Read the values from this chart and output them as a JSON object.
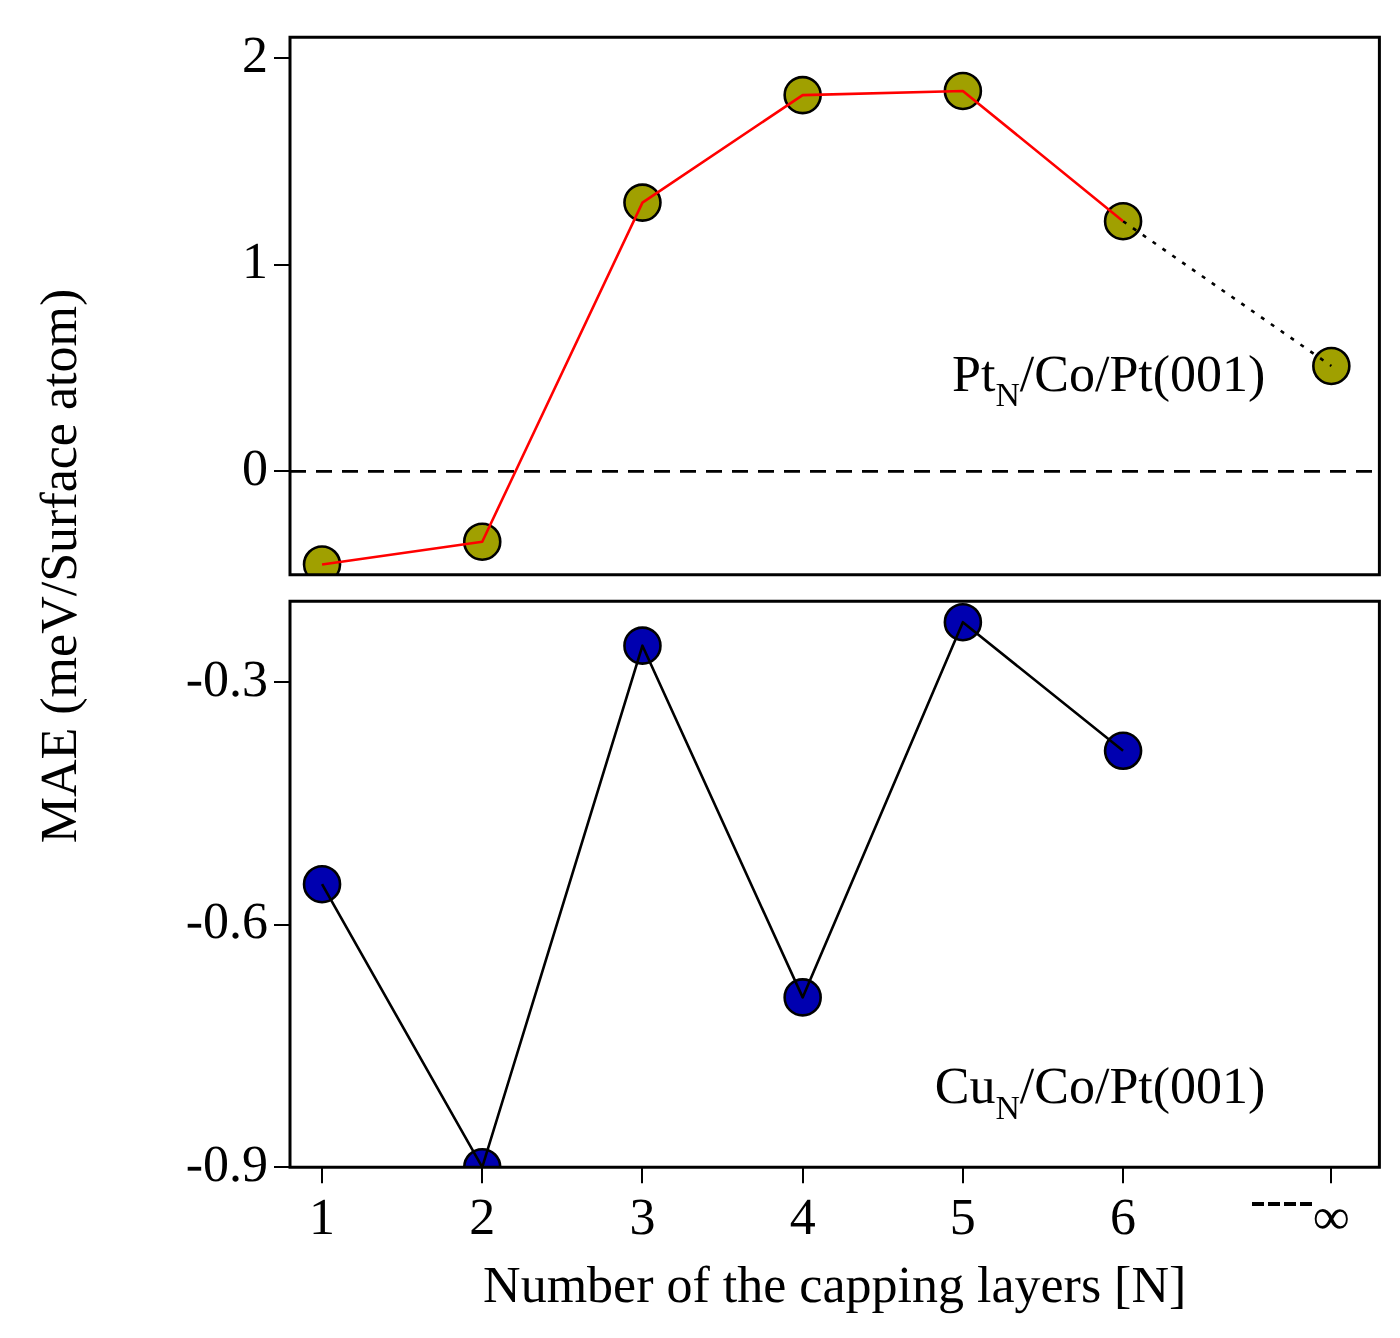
{
  "chart_data": [
    {
      "type": "line",
      "ylabel": "MAE (meV/Surface atom)",
      "x": [
        1,
        2,
        3,
        4,
        5,
        6,
        7.3
      ],
      "xlim": [
        0.8,
        7.6
      ],
      "ylim": [
        -0.5,
        2.1
      ],
      "yticks": [
        0,
        1,
        2
      ],
      "tick_labels": "y",
      "grid": false,
      "legend": false,
      "series": [
        {
          "type": "line",
          "color": "#ff0000",
          "marker": "none",
          "x": [
            1,
            2,
            3,
            4,
            5,
            6
          ],
          "values": [
            -0.45,
            -0.34,
            1.3,
            1.82,
            1.84,
            1.21
          ]
        },
        {
          "type": "line",
          "color": "#000000",
          "marker": "none",
          "line_style": "dotted",
          "x": [
            6,
            7.3
          ],
          "values": [
            1.21,
            0.51
          ]
        },
        {
          "type": "scatter",
          "color": "#a0a000",
          "marker": "circle",
          "values": [
            -0.45,
            -0.34,
            1.3,
            1.82,
            1.84,
            1.21,
            0.51
          ]
        }
      ],
      "ref_lines": [
        {
          "axis": "y",
          "value": 0,
          "color": "#000000",
          "line_style": "dashed"
        }
      ],
      "annotations": [
        "Pt$_{N}$/Co/Pt(001)"
      ]
    },
    {
      "type": "line",
      "xlabel": "Number of the capping layers [N]",
      "x": [
        1,
        2,
        3,
        4,
        5,
        6
      ],
      "xlim": [
        0.8,
        7.6
      ],
      "xticks": [
        1,
        2,
        3,
        4,
        5,
        6,
        {
          "value": 7.3,
          "label": "∞"
        }
      ],
      "ylim": [
        -0.9,
        -0.2
      ],
      "yticks": [
        -0.9,
        -0.6,
        -0.3
      ],
      "grid": false,
      "legend": false,
      "series": [
        {
          "type": "line",
          "color": "#000000",
          "marker": "none",
          "values": [
            -0.55,
            -0.9,
            -0.255,
            -0.69,
            -0.226,
            -0.385
          ]
        },
        {
          "type": "scatter",
          "color": "#0000b0",
          "marker": "circle",
          "values": [
            -0.55,
            -0.9,
            -0.255,
            -0.69,
            -0.226,
            -0.385
          ]
        }
      ],
      "annotations": [
        "Cu$_{N}$/Co/Pt(001)"
      ]
    }
  ]
}
